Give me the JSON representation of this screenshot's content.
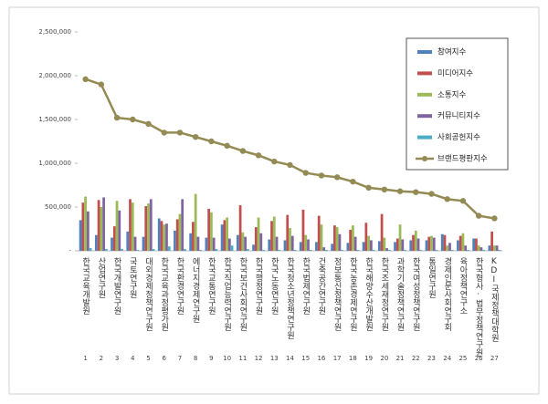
{
  "chart_data": {
    "type": "bar_line",
    "categories": [
      "한국교육개발원",
      "산업연구원",
      "한국개발연구원",
      "국토연구원",
      "대외경제정책연구원",
      "한국교육과정평가원",
      "한국환경연구원",
      "에너지경제연구원",
      "한국교통연구원",
      "한국직업능력연구원",
      "한국보건사회연구원",
      "한국행정연구원",
      "한국노동연구원",
      "한국청소년정책연구원",
      "한국법제연구원",
      "건축공간연구원",
      "정보통신정책연구원",
      "한국농촌경제연구원",
      "한국해양수산개발원",
      "한국조세재정연구원",
      "과학기술정책연구원",
      "한국여성정책연구원",
      "통일연구원",
      "경제인문사회연구회",
      "육아정책연구소",
      "한국형사·법무정책연구원",
      "KDI국제정책대학원"
    ],
    "category_numbers": [
      "1",
      "2",
      "3",
      "4",
      "5",
      "6",
      "7",
      "8",
      "9",
      "10",
      "11",
      "12",
      "13",
      "14",
      "15",
      "16",
      "17",
      "18",
      "19",
      "20",
      "21",
      "22",
      "23",
      "24",
      "25",
      "26",
      "27"
    ],
    "series": [
      {
        "name": "참여지수",
        "color": "#4f81bd",
        "values": [
          350000,
          180000,
          150000,
          220000,
          160000,
          370000,
          230000,
          200000,
          150000,
          300000,
          180000,
          70000,
          130000,
          120000,
          100000,
          100000,
          80000,
          90000,
          100000,
          110000,
          100000,
          120000,
          120000,
          190000,
          120000,
          140000,
          60000
        ]
      },
      {
        "name": "미디어지수",
        "color": "#c0504d",
        "values": [
          550000,
          580000,
          280000,
          590000,
          510000,
          340000,
          360000,
          330000,
          480000,
          350000,
          520000,
          270000,
          340000,
          410000,
          470000,
          400000,
          290000,
          240000,
          320000,
          420000,
          140000,
          180000,
          160000,
          180000,
          170000,
          140000,
          220000
        ]
      },
      {
        "name": "소통지수",
        "color": "#9bbb59",
        "values": [
          620000,
          500000,
          570000,
          550000,
          540000,
          300000,
          420000,
          650000,
          440000,
          380000,
          210000,
          380000,
          390000,
          260000,
          180000,
          300000,
          270000,
          290000,
          170000,
          150000,
          300000,
          230000,
          170000,
          60000,
          200000,
          60000,
          60000
        ]
      },
      {
        "name": "커뮤니티지수",
        "color": "#8064a2",
        "values": [
          450000,
          610000,
          460000,
          160000,
          590000,
          310000,
          590000,
          160000,
          150000,
          140000,
          160000,
          200000,
          160000,
          170000,
          130000,
          40000,
          190000,
          160000,
          120000,
          30000,
          130000,
          140000,
          150000,
          90000,
          60000,
          40000,
          60000
        ]
      },
      {
        "name": "사회공헌지수",
        "color": "#4bacc6",
        "values": [
          30000,
          20000,
          20000,
          10000,
          20000,
          50000,
          20000,
          10000,
          20000,
          60000,
          20000,
          10000,
          10000,
          10000,
          10000,
          10000,
          10000,
          10000,
          10000,
          10000,
          10000,
          10000,
          10000,
          10000,
          10000,
          10000,
          10000
        ]
      },
      {
        "name": "브랜드평판지수",
        "color": "#948a54",
        "type": "line",
        "values": [
          1960000,
          1900000,
          1520000,
          1500000,
          1450000,
          1350000,
          1350000,
          1300000,
          1250000,
          1200000,
          1140000,
          1090000,
          1020000,
          980000,
          890000,
          860000,
          840000,
          790000,
          720000,
          700000,
          680000,
          670000,
          650000,
          590000,
          570000,
          400000,
          370000
        ]
      }
    ],
    "ylim": [
      0,
      2500000
    ],
    "yticks": [
      {
        "value": 0,
        "label": "-"
      },
      {
        "value": 500000,
        "label": "500,000"
      },
      {
        "value": 1000000,
        "label": "1,000,000"
      },
      {
        "value": 1500000,
        "label": "1,500,000"
      },
      {
        "value": 2000000,
        "label": "2,000,000"
      },
      {
        "value": 2500000,
        "label": "2,500,000"
      }
    ]
  }
}
